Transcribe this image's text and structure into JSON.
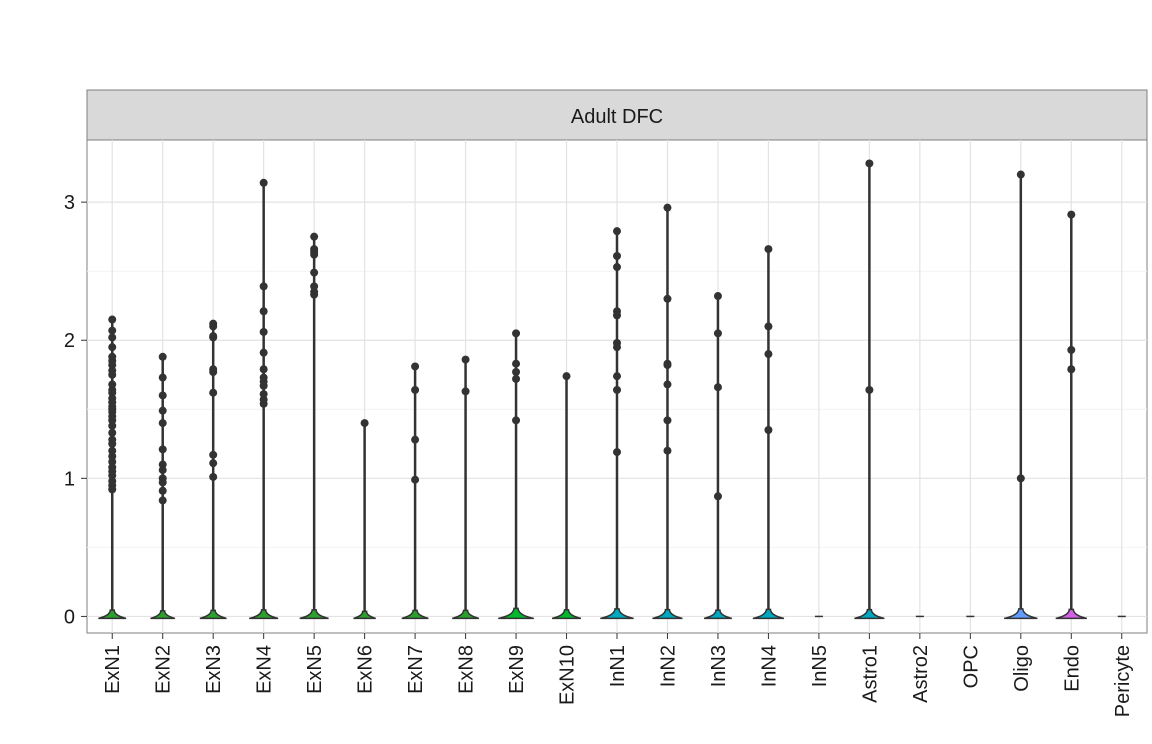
{
  "chart_data": {
    "type": "violin",
    "title": "",
    "facet_label": "Adult DFC",
    "xlabel": "",
    "ylabel": "",
    "ylim": [
      -0.12,
      3.45
    ],
    "yticks": [
      0,
      1,
      2,
      3
    ],
    "grid": true,
    "legend": "none",
    "categories": [
      "ExN1",
      "ExN2",
      "ExN3",
      "ExN4",
      "ExN5",
      "ExN6",
      "ExN7",
      "ExN8",
      "ExN9",
      "ExN10",
      "InN1",
      "InN2",
      "InN3",
      "InN4",
      "InN5",
      "Astro1",
      "Astro2",
      "OPC",
      "Oligo",
      "Endo",
      "Pericyte"
    ],
    "colors": [
      "#2ca02c",
      "#2ca02c",
      "#2ca02c",
      "#2ca02c",
      "#2ca02c",
      "#2ca02c",
      "#2ca02c",
      "#2ca02c",
      "#00b82b",
      "#00b82b",
      "#00a9c2",
      "#00a9c2",
      "#00a9c2",
      "#00a9c2",
      "#00a9c2",
      "#00a9c2",
      "#00a9c2",
      "#00a9c2",
      "#619cff",
      "#d35fe6",
      "#ff6cc7"
    ],
    "violin_max": [
      2.15,
      1.88,
      2.12,
      3.14,
      2.75,
      1.4,
      1.81,
      1.86,
      2.05,
      1.74,
      2.79,
      2.96,
      2.32,
      2.66,
      0.0,
      3.28,
      0.0,
      0.0,
      3.2,
      2.91,
      0.0
    ],
    "violin_width": [
      0.25,
      0.22,
      0.24,
      0.26,
      0.26,
      0.2,
      0.24,
      0.24,
      0.32,
      0.26,
      0.3,
      0.27,
      0.25,
      0.28,
      0.0,
      0.27,
      0.0,
      0.0,
      0.3,
      0.28,
      0.0
    ],
    "outliers": [
      [
        2.15,
        2.07,
        2.02,
        1.95,
        1.88,
        1.85,
        1.82,
        1.78,
        1.75,
        1.68,
        1.64,
        1.62,
        1.58,
        1.55,
        1.52,
        1.5,
        1.48,
        1.45,
        1.42,
        1.38,
        1.33,
        1.28,
        1.25,
        1.2,
        1.16,
        1.12,
        1.08,
        1.05,
        1.02,
        0.98,
        0.95,
        0.92
      ],
      [
        1.88,
        1.73,
        1.6,
        1.49,
        1.4,
        1.21,
        1.1,
        1.06,
        1.0,
        0.97,
        0.91,
        0.84
      ],
      [
        2.12,
        2.1,
        2.03,
        2.02,
        1.79,
        1.77,
        1.62,
        1.17,
        1.11,
        1.01
      ],
      [
        3.14,
        2.39,
        2.21,
        2.06,
        1.91,
        1.79,
        1.73,
        1.7,
        1.67,
        1.61,
        1.57,
        1.54
      ],
      [
        2.75,
        2.66,
        2.64,
        2.62,
        2.49,
        2.39,
        2.35,
        2.33
      ],
      [
        1.4
      ],
      [
        1.81,
        1.64,
        1.28,
        0.99
      ],
      [
        1.86,
        1.63
      ],
      [
        2.05,
        1.83,
        1.77,
        1.72,
        1.42
      ],
      [
        1.74
      ],
      [
        2.79,
        2.61,
        2.53,
        2.21,
        2.18,
        1.98,
        1.95,
        1.74,
        1.64,
        1.19
      ],
      [
        2.96,
        2.3,
        1.83,
        1.82,
        1.68,
        1.42,
        1.2
      ],
      [
        2.32,
        2.05,
        1.66,
        0.87
      ],
      [
        2.66,
        2.1,
        1.9,
        1.35
      ],
      [],
      [
        3.28,
        1.64
      ],
      [],
      [],
      [
        3.2,
        1.0
      ],
      [
        2.91,
        1.93,
        1.79
      ],
      []
    ]
  }
}
